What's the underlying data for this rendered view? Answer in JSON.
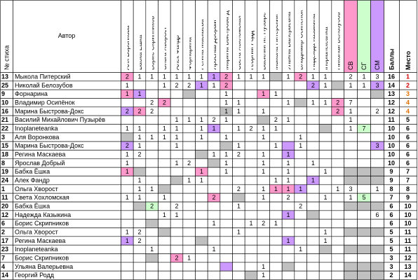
{
  "header": {
    "number": "№ стиха",
    "author": "Автор",
    "judges": [
      "Аля Воронкова",
      "Бабка Ёшка",
      "Борис Скрипников",
      "Ольга Хворост",
      "Алек Фандр",
      "Форнарина",
      "Регина Маскаева",
      "Ярослав Добрый",
      "Марина Быстрова-Д",
      "Света Хохломская",
      "Георгий Родд",
      "Василий М. Пузырё",
      "Мыкола Питерский",
      "Ульяна Валерьевна",
      "Владимир Осипёнок",
      "Надежда Казыкина",
      "Inoplaneteanka",
      "Николай Белозубов"
    ],
    "groups": [
      "СВ",
      "СГ",
      "СМ"
    ],
    "group_colors": [
      "#ff99cc",
      "#ccffcc",
      "#cc99ff"
    ],
    "score": "Баллы",
    "place": "Место"
  },
  "palette": {
    "p": "#ff99cc",
    "v": "#cc99ff",
    "g": "#c0c0c0",
    "n": "#ccffcc"
  },
  "rows": [
    {
      "number": 13,
      "author": "Мыкола Питерский",
      "cells": [
        2,
        1,
        1,
        1,
        1,
        1,
        1,
        1,
        2,
        1,
        1,
        1,
        null,
        1,
        2,
        1,
        1,
        null,
        2,
        1,
        3
      ],
      "colors": "p......vp...g.p......",
      "score": 16,
      "place": 1
    },
    {
      "number": 25,
      "author": "Николай Белозубов",
      "cells": [
        1,
        null,
        null,
        1,
        2,
        2,
        1,
        1,
        2,
        null,
        null,
        null,
        null,
        null,
        null,
        2,
        1,
        null,
        1,
        1,
        3
      ],
      "colors": "......v.p......v.g..v",
      "score": 14,
      "place": 2
    },
    {
      "number": 9,
      "author": "Форнарина",
      "cells": [
        1,
        1,
        null,
        null,
        null,
        null,
        null,
        null,
        1,
        null,
        null,
        1,
        1,
        null,
        null,
        null,
        null,
        null,
        null,
        null,
        null
      ],
      "colors": "pv...g.....p........g",
      "score": 13,
      "place": 3
    },
    {
      "number": 10,
      "author": "Владимир Осипёнок",
      "cells": [
        null,
        null,
        2,
        2,
        null,
        null,
        null,
        null,
        1,
        1,
        null,
        null,
        null,
        1,
        null,
        1,
        1,
        2,
        7,
        null,
        null
      ],
      "colors": "...p..........g..p...",
      "score": 12,
      "place": 4
    },
    {
      "number": 16,
      "author": "Марина Быстрова-Докс",
      "cells": [
        2,
        2,
        2,
        null,
        null,
        null,
        null,
        null,
        1,
        1,
        null,
        1,
        null,
        null,
        null,
        null,
        null,
        2,
        1,
        null,
        2
      ],
      "colors": "vp......g........p...",
      "score": 12,
      "place": 4
    },
    {
      "number": 21,
      "author": "Василий Михайлович Пузырёв",
      "cells": [
        null,
        null,
        null,
        null,
        1,
        1,
        1,
        2,
        1,
        null,
        null,
        null,
        2,
        1,
        null,
        null,
        null,
        null,
        1,
        null,
        null
      ],
      "colors": "...........g.........",
      "score": 11,
      "place": 5
    },
    {
      "number": 22,
      "author": "Inoplaneteanka",
      "cells": [
        1,
        1,
        null,
        1,
        1,
        null,
        1,
        1,
        null,
        1,
        2,
        1,
        1,
        null,
        null,
        null,
        null,
        null,
        1,
        7,
        null
      ],
      "colors": ".......v........g..n.",
      "score": 10,
      "place": 6
    },
    {
      "number": 3,
      "author": "Аля Воронкова",
      "cells": [
        null,
        1,
        1,
        1,
        1,
        null,
        1,
        null,
        1,
        null,
        null,
        1,
        null,
        null,
        1,
        null,
        null,
        null,
        null,
        null,
        null
      ],
      "colors": "g....................",
      "score": 10,
      "place": 6
    },
    {
      "number": 15,
      "author": "Марина Быстрова-Докс",
      "cells": [
        2,
        1,
        null,
        null,
        1,
        null,
        null,
        null,
        null,
        1,
        null,
        null,
        1,
        null,
        1,
        null,
        null,
        null,
        null,
        null,
        3
      ],
      "colors": "v.......g....v......v",
      "score": 10,
      "place": 6
    },
    {
      "number": 18,
      "author": "Регина Маскаева",
      "cells": [
        1,
        2,
        null,
        null,
        null,
        null,
        null,
        1,
        1,
        2,
        null,
        1,
        null,
        1,
        null,
        null,
        null,
        null,
        null,
        null,
        null
      ],
      "colors": "......g......v.......",
      "score": 10,
      "place": 6
    },
    {
      "number": 8,
      "author": "Ярослав Добрый",
      "cells": [
        1,
        null,
        null,
        null,
        1,
        2,
        null,
        null,
        1,
        null,
        null,
        1,
        null,
        1,
        null,
        1,
        null,
        null,
        null,
        null,
        null
      ],
      "colors": ".......g.............",
      "score": 10,
      "place": 6
    },
    {
      "number": 19,
      "author": "Бабка Ёшка",
      "cells": [
        1,
        null,
        null,
        null,
        null,
        null,
        1,
        null,
        1,
        null,
        null,
        1,
        null,
        1,
        null,
        null,
        1,
        null,
        null,
        null,
        null
      ],
      "colors": "pg....p...........ggg",
      "score": 9,
      "place": 7
    },
    {
      "number": 24,
      "author": "Алек Фандр",
      "cells": [
        null,
        1,
        null,
        null,
        null,
        1,
        1,
        null,
        null,
        null,
        null,
        null,
        1,
        1,
        null,
        1,
        null,
        null,
        null,
        null,
        null
      ],
      "colors": "....g..........v..ggg",
      "score": 9,
      "place": 7
    },
    {
      "number": 1,
      "author": "Ольга Хворост",
      "cells": [
        null,
        1,
        1,
        null,
        null,
        null,
        null,
        null,
        null,
        2,
        null,
        1,
        1,
        1,
        1,
        null,
        null,
        1,
        3,
        null,
        1
      ],
      "colors": "...g........ppv......",
      "score": 8,
      "place": 8
    },
    {
      "number": 11,
      "author": "Света Хохломская",
      "cells": [
        1,
        1,
        null,
        1,
        null,
        null,
        null,
        2,
        null,
        null,
        null,
        1,
        null,
        2,
        null,
        null,
        1,
        null,
        1,
        5,
        null
      ],
      "colors": ".......p.g.........n.",
      "score": 7,
      "place": 9
    },
    {
      "number": 20,
      "author": "Бабка Ёшка",
      "cells": [
        null,
        null,
        2,
        null,
        2,
        null,
        null,
        null,
        null,
        1,
        null,
        null,
        null,
        null,
        2,
        null,
        null,
        null,
        null,
        null,
        null
      ],
      "colors": ".gn...............ggg",
      "score": 6,
      "place": 10
    },
    {
      "number": 12,
      "author": "Надежда Казыкина",
      "cells": [
        null,
        null,
        null,
        1,
        1,
        null,
        null,
        null,
        null,
        null,
        null,
        null,
        null,
        1,
        null,
        null,
        null,
        null,
        null,
        null,
        6
      ],
      "colors": ".............v.g.....",
      "score": 6,
      "place": 10
    },
    {
      "number": 6,
      "author": "Борис Скрипников",
      "cells": [
        null,
        null,
        null,
        null,
        null,
        null,
        null,
        1,
        null,
        null,
        1,
        2,
        1,
        null,
        null,
        null,
        null,
        null,
        null,
        null,
        null
      ],
      "colors": "..g..................",
      "score": 6,
      "place": 10
    },
    {
      "number": 2,
      "author": "Ольга Хворост",
      "cells": [
        1,
        2,
        null,
        null,
        null,
        null,
        null,
        null,
        null,
        1,
        null,
        null,
        null,
        null,
        null,
        null,
        1,
        null,
        null,
        null,
        null
      ],
      "colors": "...g..............ggg",
      "score": 5,
      "place": 11
    },
    {
      "number": 17,
      "author": "Регина Маскаева",
      "cells": [
        1,
        2,
        null,
        null,
        null,
        null,
        null,
        null,
        null,
        null,
        null,
        null,
        null,
        1,
        null,
        null,
        1,
        null,
        null,
        null,
        null
      ],
      "colors": "v.....g......v.......",
      "score": 5,
      "place": 11
    },
    {
      "number": 23,
      "author": "Inoplaneteanka",
      "cells": [
        null,
        null,
        1,
        null,
        null,
        null,
        null,
        1,
        null,
        null,
        null,
        null,
        null,
        null,
        1,
        null,
        null,
        null,
        null,
        null,
        null
      ],
      "colors": "................g.ggg",
      "score": 5,
      "place": 11
    },
    {
      "number": 7,
      "author": "Борис Скрипников",
      "cells": [
        null,
        null,
        null,
        null,
        2,
        1,
        null,
        null,
        null,
        null,
        null,
        null,
        null,
        null,
        null,
        null,
        null,
        null,
        null,
        null,
        null
      ],
      "colors": "..g.p................",
      "score": 3,
      "place": 12
    },
    {
      "number": 4,
      "author": "Ульяна Валерьевна",
      "cells": [
        null,
        null,
        null,
        null,
        null,
        null,
        null,
        null,
        null,
        null,
        null,
        1,
        null,
        null,
        null,
        null,
        null,
        null,
        null,
        null,
        null
      ],
      "colors": "........v....g....ggg",
      "score": 3,
      "place": 13
    },
    {
      "number": 14,
      "author": "Георгий Родд",
      "cells": [
        null,
        null,
        null,
        null,
        null,
        null,
        null,
        null,
        null,
        null,
        null,
        1,
        null,
        null,
        null,
        null,
        null,
        null,
        null,
        null,
        null
      ],
      "colors": "..........g.......ggg",
      "score": 2,
      "place": 14
    }
  ]
}
